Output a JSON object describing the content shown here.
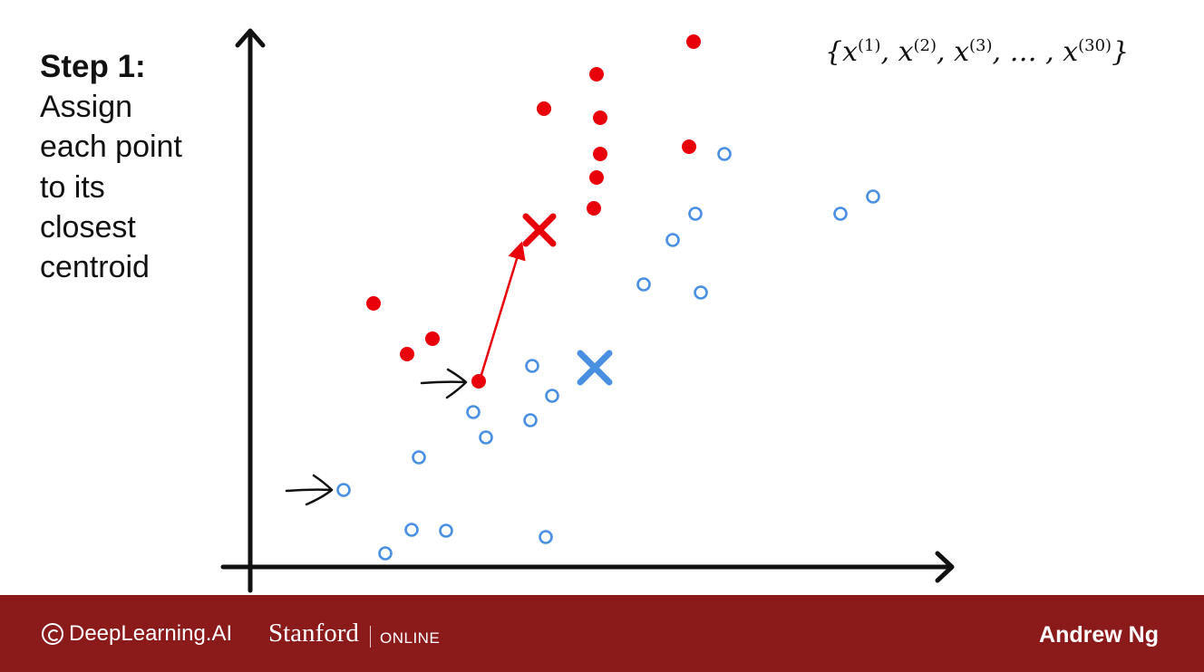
{
  "step": {
    "title": "Step 1:",
    "lines": [
      "Assign",
      "each point",
      "to its",
      "closest",
      "centroid"
    ]
  },
  "notation": {
    "var": "x",
    "indices": [
      "(1)",
      "(2)",
      "(3)",
      "(30)"
    ],
    "ellipsis": "…"
  },
  "colors": {
    "cluster_red": "#e8000b",
    "cluster_blue": "#4a90e2",
    "axis": "#111111",
    "footer": "#8b1a1a"
  },
  "footer": {
    "brand1": "DeepLearning.AI",
    "brand2": "Stanford",
    "brand2_sub": "ONLINE",
    "author": "Andrew Ng"
  }
}
